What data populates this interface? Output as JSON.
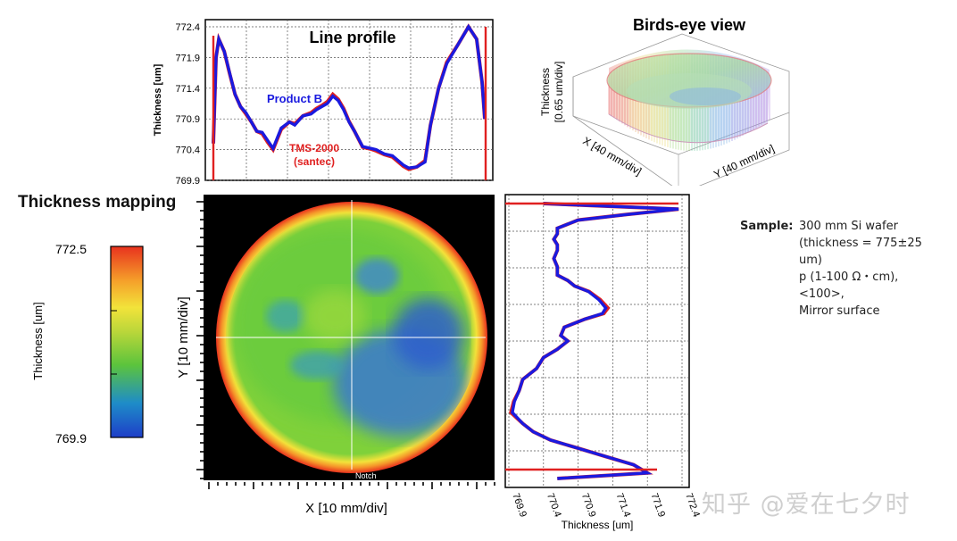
{
  "line_profile": {
    "title": "Line profile",
    "ylabel": "Thickness [um]",
    "yticks": [
      "772.4",
      "771.9",
      "771.4",
      "770.9",
      "770.4",
      "769.9"
    ],
    "series_labels": {
      "product": "Product B",
      "reference_line1": "TMS-2000",
      "reference_line2": "(santec)"
    }
  },
  "birds_eye": {
    "title": "Birds-eye view",
    "zlabel_line1": "Thickness",
    "zlabel_line2": "[0.65 um/div]",
    "xlabel": "X [40 mm/div]",
    "ylabel": "Y [40 mm/div]"
  },
  "mapping": {
    "title": "Thickness mapping",
    "colorbar_label": "Thickness [um]",
    "colorbar_max": "772.5",
    "colorbar_min": "769.9",
    "xlabel": "X [10 mm/div]",
    "ylabel": "Y [10 mm/div]",
    "notch_label": "Notch"
  },
  "side_profile": {
    "xlabel": "Thickness [um]",
    "xticks": [
      "769.9",
      "770.4",
      "770.9",
      "771.4",
      "771.9",
      "772.4"
    ]
  },
  "sample": {
    "label": "Sample:",
    "lines": [
      "300 mm Si wafer",
      "(thickness = 775±25 um)",
      "p (1-100 Ω・cm), <100>,",
      "Mirror surface"
    ]
  },
  "watermark": "知乎 @爱在七夕时",
  "colors": {
    "product": "#1a1adf",
    "reference": "#e02020",
    "map_bg": "#000000"
  },
  "chart_data": [
    {
      "type": "line",
      "title": "Line profile",
      "ylabel": "Thickness [um]",
      "ylim": [
        769.9,
        772.4
      ],
      "x": [
        0,
        0.01,
        0.02,
        0.04,
        0.06,
        0.08,
        0.1,
        0.12,
        0.14,
        0.16,
        0.18,
        0.2,
        0.22,
        0.25,
        0.28,
        0.3,
        0.33,
        0.36,
        0.38,
        0.4,
        0.42,
        0.44,
        0.46,
        0.48,
        0.5,
        0.52,
        0.55,
        0.58,
        0.6,
        0.63,
        0.66,
        0.7,
        0.72,
        0.75,
        0.78,
        0.8,
        0.83,
        0.86,
        0.9,
        0.94,
        0.97,
        0.99,
        1.0
      ],
      "grid": true,
      "series": [
        {
          "name": "Product B",
          "color": "#1a1adf",
          "values": [
            770.5,
            771.9,
            772.2,
            772.0,
            771.65,
            771.3,
            771.1,
            771.0,
            770.85,
            770.7,
            770.68,
            770.55,
            770.42,
            770.75,
            770.85,
            770.8,
            770.95,
            770.98,
            771.05,
            771.1,
            771.15,
            771.27,
            771.2,
            771.05,
            770.85,
            770.7,
            770.45,
            770.42,
            770.4,
            770.33,
            770.3,
            770.15,
            770.1,
            770.12,
            770.2,
            770.8,
            771.4,
            771.8,
            772.1,
            772.4,
            772.2,
            771.5,
            770.9
          ]
        },
        {
          "name": "TMS-2000 (santec)",
          "color": "#e02020",
          "values": [
            770.5,
            771.9,
            772.2,
            772.0,
            771.64,
            771.3,
            771.1,
            770.98,
            770.85,
            770.7,
            770.66,
            770.52,
            770.4,
            770.73,
            770.85,
            770.82,
            770.95,
            771.0,
            771.07,
            771.12,
            771.18,
            771.3,
            771.22,
            771.07,
            770.86,
            770.7,
            770.44,
            770.41,
            770.38,
            770.32,
            770.28,
            770.13,
            770.08,
            770.12,
            770.22,
            770.8,
            771.4,
            771.82,
            772.1,
            772.4,
            772.2,
            771.5,
            770.9
          ]
        }
      ]
    },
    {
      "type": "heatmap",
      "title": "Thickness mapping",
      "xlabel": "X [10 mm/div]",
      "ylabel": "Y [10 mm/div]",
      "colorbar": {
        "label": "Thickness [um]",
        "min": 769.9,
        "max": 772.5
      }
    },
    {
      "type": "line",
      "xlabel": "Thickness [um]",
      "xlim": [
        769.9,
        772.4
      ],
      "grid": true,
      "y": [
        0,
        0.02,
        0.04,
        0.06,
        0.09,
        0.11,
        0.13,
        0.15,
        0.17,
        0.2,
        0.23,
        0.26,
        0.28,
        0.3,
        0.32,
        0.35,
        0.38,
        0.4,
        0.42,
        0.45,
        0.48,
        0.5,
        0.53,
        0.56,
        0.6,
        0.64,
        0.68,
        0.72,
        0.76,
        0.8,
        0.83,
        0.86,
        0.89,
        0.92,
        0.95,
        0.98,
        1.0
      ],
      "series": [
        {
          "name": "Product B",
          "color": "#1a1adf",
          "values": [
            770.4,
            772.35,
            771.6,
            770.9,
            770.6,
            770.6,
            770.55,
            770.6,
            770.6,
            770.55,
            770.6,
            770.6,
            770.75,
            770.85,
            771.05,
            771.2,
            771.3,
            771.25,
            771.0,
            770.7,
            770.65,
            770.75,
            770.6,
            770.4,
            770.3,
            770.1,
            770.05,
            769.98,
            769.95,
            770.1,
            770.25,
            770.5,
            770.9,
            771.3,
            771.7,
            771.9,
            770.6
          ]
        },
        {
          "name": "TMS-2000 (santec)",
          "color": "#e02020",
          "values": [
            770.4,
            772.35,
            771.6,
            770.9,
            770.6,
            770.6,
            770.55,
            770.6,
            770.6,
            770.55,
            770.6,
            770.6,
            770.75,
            770.85,
            771.06,
            771.22,
            771.33,
            771.27,
            771.0,
            770.7,
            770.65,
            770.75,
            770.6,
            770.4,
            770.3,
            770.1,
            770.05,
            769.97,
            769.93,
            770.1,
            770.25,
            770.5,
            770.9,
            771.3,
            771.7,
            771.9,
            770.6
          ]
        }
      ]
    }
  ]
}
